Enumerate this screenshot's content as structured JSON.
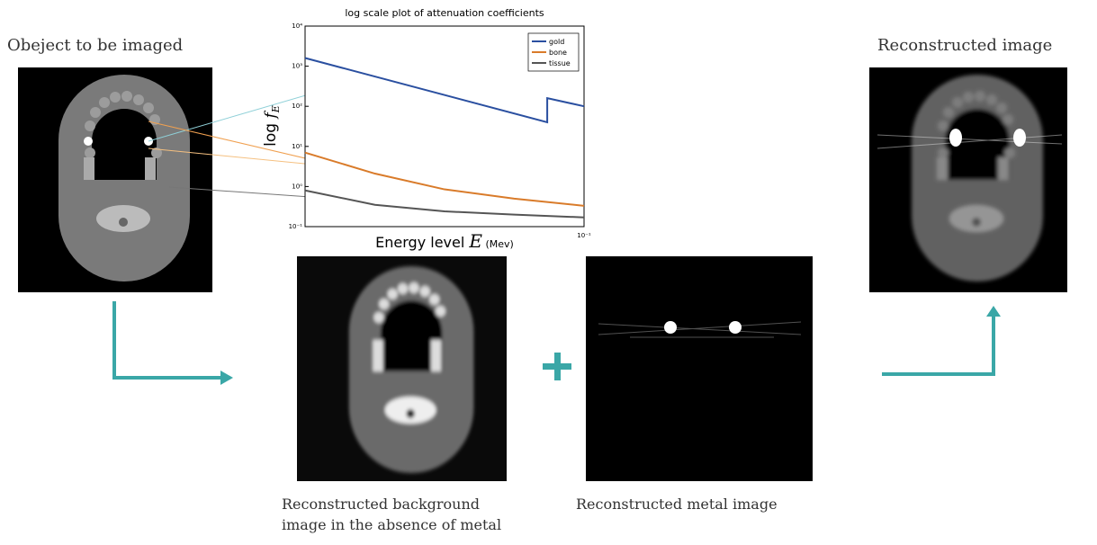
{
  "labels": {
    "object": "Obeject to be imaged",
    "reconstructed": "Reconstructed image",
    "background_caption": [
      "Reconstructed background",
      "image in the absence of metal"
    ],
    "metal_caption": "Reconstructed metal image"
  },
  "chart_data": {
    "type": "line",
    "title": "log scale plot of attenuation coefficients",
    "ylabel": [
      "log ",
      "f",
      "E"
    ],
    "xlabel": [
      "Energy level ",
      "E",
      " (Mev)"
    ],
    "log_x": true,
    "log_y": true,
    "legend": "upper-right",
    "xlim": [
      0.01,
      0.1
    ],
    "ylim": [
      0.1,
      10000
    ],
    "xticks": [
      {
        "value": 0.1,
        "label": "10⁻¹"
      }
    ],
    "yticks": [
      {
        "value": 0.1,
        "label": "10⁻¹"
      },
      {
        "value": 1,
        "label": "10⁰"
      },
      {
        "value": 10,
        "label": "10¹"
      },
      {
        "value": 100,
        "label": "10²"
      },
      {
        "value": 1000,
        "label": "10³"
      },
      {
        "value": 10000,
        "label": "10⁴"
      }
    ],
    "series": [
      {
        "name": "gold",
        "color": "#2a4fa0",
        "x": [
          0.01,
          0.0738,
          0.0738,
          0.1
        ],
        "values": [
          1600,
          40,
          160,
          100
        ]
      },
      {
        "name": "bone",
        "color": "#d97b2a",
        "x": [
          0.01,
          0.0178,
          0.0316,
          0.0562,
          0.1
        ],
        "values": [
          7,
          2.1,
          0.85,
          0.5,
          0.33
        ]
      },
      {
        "name": "tissue",
        "color": "#555555",
        "x": [
          0.01,
          0.0178,
          0.0316,
          0.0562,
          0.1
        ],
        "values": [
          0.8,
          0.35,
          0.24,
          0.2,
          0.17
        ]
      }
    ]
  }
}
